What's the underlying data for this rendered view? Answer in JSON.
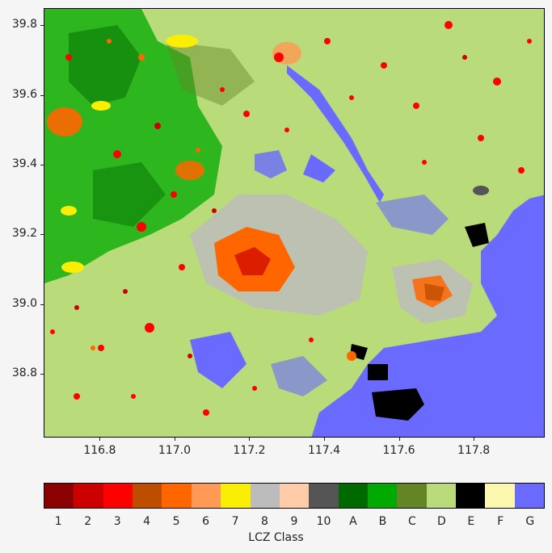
{
  "map": {
    "x_ticks": [
      "116.8",
      "117.0",
      "117.2",
      "117.4",
      "117.6",
      "117.8"
    ],
    "x_tick_values": [
      116.8,
      117.0,
      117.2,
      117.4,
      117.6,
      117.8
    ],
    "x_range": [
      116.65,
      117.99
    ],
    "y_ticks": [
      "39.8",
      "39.6",
      "39.4",
      "39.2",
      "39.0",
      "38.8"
    ],
    "y_tick_values": [
      39.8,
      39.6,
      39.4,
      39.2,
      39.0,
      38.8
    ],
    "y_range": [
      38.617,
      39.849
    ]
  },
  "colorbar": {
    "title": "LCZ Class",
    "classes": [
      {
        "label": "1",
        "color": "#8b0000"
      },
      {
        "label": "2",
        "color": "#cc0000"
      },
      {
        "label": "3",
        "color": "#ff0000"
      },
      {
        "label": "4",
        "color": "#bf4d00"
      },
      {
        "label": "5",
        "color": "#ff6600"
      },
      {
        "label": "6",
        "color": "#ff9955"
      },
      {
        "label": "7",
        "color": "#faee05"
      },
      {
        "label": "8",
        "color": "#bcbcbc"
      },
      {
        "label": "9",
        "color": "#ffccaa"
      },
      {
        "label": "10",
        "color": "#555555"
      },
      {
        "label": "A",
        "color": "#006a00"
      },
      {
        "label": "B",
        "color": "#00aa00"
      },
      {
        "label": "C",
        "color": "#648525"
      },
      {
        "label": "D",
        "color": "#b9db79"
      },
      {
        "label": "E",
        "color": "#000000"
      },
      {
        "label": "F",
        "color": "#fbf7ae"
      },
      {
        "label": "G",
        "color": "#6a6aff"
      }
    ]
  }
}
